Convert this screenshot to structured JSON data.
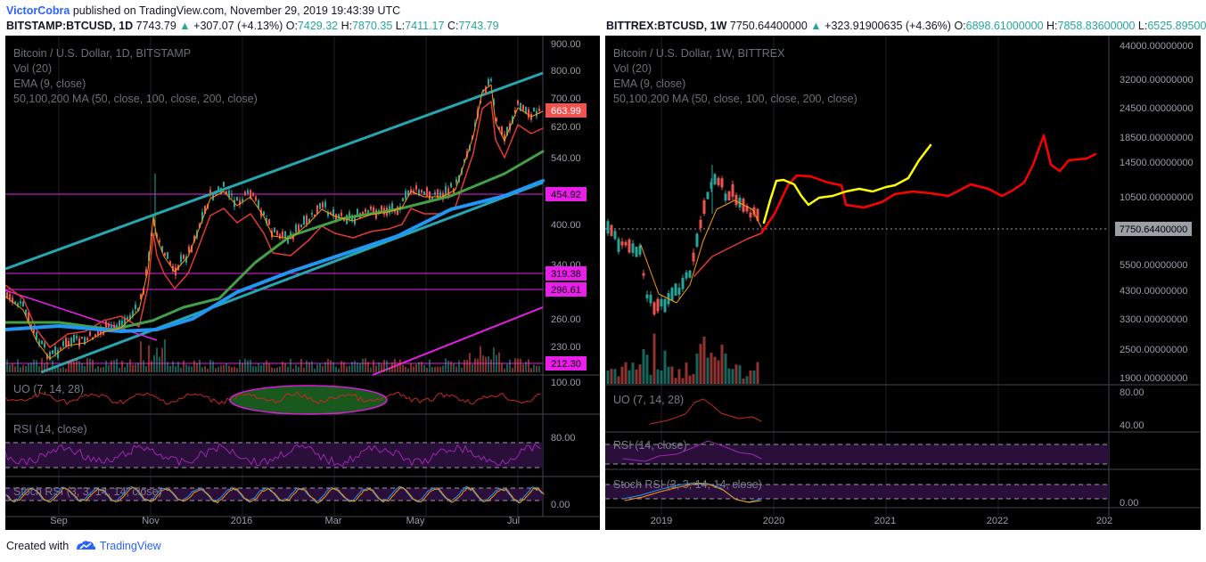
{
  "header": {
    "author": "VictorCobra",
    "published": "published on TradingView.com, November 29, 2019 19:43:39 UTC",
    "left_symbol": "BITSTAMP:BTCUSD, 1D",
    "left_last": "7743.79",
    "left_change": "+307.07 (+4.13%)",
    "left_o_label": "O:",
    "left_o": "7429.32",
    "left_h_label": "H:",
    "left_h": "7870.35",
    "left_l_label": "L:",
    "left_l": "7411.17",
    "left_c_label": "C:",
    "left_c": "7743.79",
    "right_symbol": "BITTREX:BTCUSD, 1W",
    "right_last": "7750.64400000",
    "right_change": "+323.91900635 (+4.36%)",
    "right_o_label": "O:",
    "right_o": "6898.61000000",
    "right_h_label": "H:",
    "right_h": "7858.83600000",
    "right_l_label": "L:",
    "right_l": "6525.89500"
  },
  "colors": {
    "up": "#26a69a",
    "down": "#ef5350",
    "channel": "#26a6b0",
    "ema": "#ff9800",
    "ma50": "#e53935",
    "ma100": "#43a047",
    "ma200": "#2196f3",
    "magenta": "#e91ee9",
    "projection_red": "#ff0000",
    "projection_yellow": "#ffff00",
    "price_tag_bg": "#ef5350"
  },
  "left_chart": {
    "overlays": [
      "Bitcoin / U.S. Dollar, 1D, BITSTAMP",
      "Vol (20)",
      "EMA (9, close)",
      "50,100,200 MA (50, close, 100, close, 200, close)"
    ],
    "price_ticks": [
      "900.00",
      "800.00",
      "700.00",
      "620.00",
      "540.00",
      "400.00",
      "340.00",
      "260.00",
      "230.00"
    ],
    "last_price_tag": "663.99",
    "level_tags": [
      "454.92",
      "319.38",
      "296.61",
      "212.30"
    ],
    "time_ticks": [
      "Sep",
      "Nov",
      "2016",
      "Mar",
      "May",
      "Jul"
    ],
    "uo_label": "UO (7, 14, 28)",
    "uo_tick": "100.00",
    "rsi_label": "RSI (14, close)",
    "rsi_tick": "80.00",
    "stoch_label": "Stoch RSI (3, 3, 14, 14, close)",
    "stoch_tick": "0.00"
  },
  "right_chart": {
    "overlays": [
      "Bitcoin / U.S. Dollar, 1W, BITTREX",
      "Vol (20)",
      "EMA (9, close)",
      "50,100,200 MA (50, close, 100, close, 200, close)"
    ],
    "price_ticks": [
      "44000.00000000",
      "32000.00000000",
      "24500.00000000",
      "18500.00000000",
      "14500.00000000",
      "10500.00000000",
      "5500.00000000",
      "4300.00000000",
      "3300.00000000",
      "2500.00000000",
      "1900.00000000"
    ],
    "last_price_tag": "7750.64400000",
    "time_ticks": [
      "2019",
      "2020",
      "2021",
      "2022",
      "202"
    ],
    "uo_label": "UO (7, 14, 28)",
    "uo_ticks": [
      "80.00",
      "40.00"
    ],
    "rsi_label": "RSI (14, close)",
    "stoch_label": "Stoch RSI (3, 3, 14, 14, close)",
    "stoch_tick": "0.00"
  },
  "footer": {
    "created_with": "Created with",
    "brand": "TradingView"
  }
}
